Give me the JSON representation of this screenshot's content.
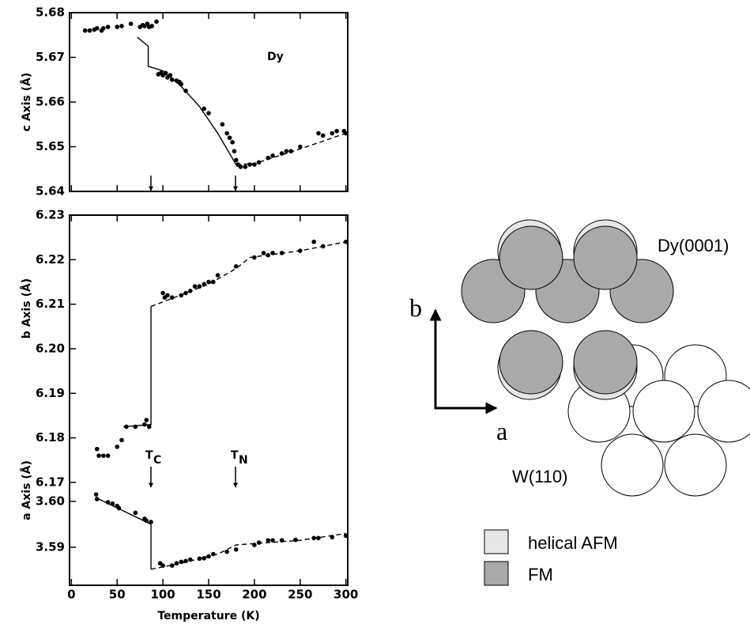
{
  "chart_data": [
    {
      "type": "scatter",
      "ylabel": "c Axis (Å)",
      "annotation": "Dy",
      "xlim": [
        -2,
        302
      ],
      "ylim": [
        5.64,
        5.68
      ],
      "yticks": [
        5.64,
        5.65,
        5.66,
        5.67,
        5.68
      ],
      "series": [
        {
          "color": "#000000",
          "mode": "markers",
          "x": [
            15,
            20,
            25,
            28,
            33,
            35,
            40,
            50,
            55,
            65,
            75,
            78,
            80,
            83,
            85,
            88,
            93,
            95,
            98,
            100,
            103,
            105,
            108,
            110,
            115,
            118,
            120,
            125,
            145,
            150,
            165,
            170,
            173,
            176,
            178,
            180,
            182,
            185,
            190,
            195,
            200,
            205,
            215,
            220,
            230,
            235,
            240,
            250,
            270,
            275,
            285,
            290,
            298,
            300
          ],
          "values": [
            5.676,
            5.676,
            5.6762,
            5.6765,
            5.676,
            5.6765,
            5.6768,
            5.6768,
            5.677,
            5.6775,
            5.6768,
            5.6772,
            5.677,
            5.6775,
            5.6768,
            5.677,
            5.678,
            5.6662,
            5.6665,
            5.666,
            5.6665,
            5.6655,
            5.666,
            5.665,
            5.6648,
            5.6645,
            5.664,
            5.6625,
            5.6585,
            5.6575,
            5.655,
            5.653,
            5.652,
            5.651,
            5.649,
            5.647,
            5.646,
            5.6455,
            5.6455,
            5.646,
            5.646,
            5.6465,
            5.6475,
            5.648,
            5.6485,
            5.649,
            5.649,
            5.65,
            5.653,
            5.6525,
            5.653,
            5.6535,
            5.6535,
            5.653
          ]
        },
        {
          "color": "#000000",
          "mode": "lines",
          "dash": false,
          "x": [
            72,
            84,
            84,
            100,
            120,
            140,
            160,
            180
          ],
          "values": [
            5.6745,
            5.6725,
            5.668,
            5.667,
            5.6635,
            5.659,
            5.653,
            5.646
          ]
        },
        {
          "color": "#000000",
          "mode": "lines",
          "dash": true,
          "x": [
            180,
            200,
            250,
            300
          ],
          "values": [
            5.646,
            5.6462,
            5.6495,
            5.653
          ]
        }
      ]
    },
    {
      "type": "scatter",
      "ylabel": "b Axis (Å)",
      "annotations": [
        [
          "T",
          "C"
        ],
        [
          "T",
          "N"
        ]
      ],
      "xlim": [
        -2,
        302
      ],
      "ylim": [
        6.1675,
        6.23
      ],
      "yticks": [
        6.17,
        6.18,
        6.19,
        {
          "value": 6.2,
          "label": "6.20"
        },
        6.21,
        6.22,
        6.23
      ],
      "series": [
        {
          "color": "#000000",
          "mode": "markers",
          "x": [
            28,
            30,
            35,
            40,
            50,
            55,
            60,
            70,
            80,
            82,
            85,
            100,
            102,
            105,
            110,
            120,
            125,
            130,
            135,
            140,
            145,
            150,
            155,
            160,
            180,
            200,
            210,
            215,
            220,
            230,
            250,
            265,
            275,
            300
          ],
          "values": [
            6.1775,
            6.176,
            6.176,
            6.176,
            6.178,
            6.1795,
            6.1825,
            6.1825,
            6.183,
            6.184,
            6.1825,
            6.2125,
            6.2115,
            6.212,
            6.2115,
            6.212,
            6.2125,
            6.213,
            6.214,
            6.214,
            6.2145,
            6.215,
            6.215,
            6.2165,
            6.2185,
            6.2205,
            6.2215,
            6.221,
            6.2215,
            6.2215,
            6.222,
            6.224,
            6.223,
            6.224
          ]
        },
        {
          "color": "#000000",
          "mode": "lines",
          "dash": false,
          "x": [
            57,
            87,
            87
          ],
          "values": [
            6.1825,
            6.183,
            6.2095
          ]
        },
        {
          "color": "#000000",
          "mode": "lines",
          "dash": true,
          "x": [
            87,
            100,
            150,
            180,
            195,
            250,
            300
          ],
          "values": [
            6.2095,
            6.2105,
            6.2145,
            6.218,
            6.2205,
            6.222,
            6.224
          ]
        }
      ]
    },
    {
      "type": "scatter",
      "ylabel": "a Axis (Å)",
      "xlabel": "Temperature (K)",
      "xlim": [
        -2,
        302
      ],
      "xticks": [
        0,
        50,
        100,
        150,
        200,
        250,
        300
      ],
      "ylim": [
        3.5817,
        3.6017
      ],
      "yticks": [
        3.59,
        {
          "value": 3.6,
          "label": "3.60"
        }
      ],
      "series": [
        {
          "color": "#000000",
          "mode": "markers",
          "x": [
            27,
            28,
            40,
            45,
            50,
            52,
            70,
            80,
            82,
            87,
            97,
            100,
            110,
            115,
            120,
            125,
            130,
            140,
            145,
            150,
            155,
            170,
            180,
            200,
            205,
            215,
            220,
            230,
            245,
            265,
            270,
            285,
            300
          ],
          "values": [
            3.6015,
            3.6005,
            3.5998,
            3.5995,
            3.599,
            3.5985,
            3.5975,
            3.5962,
            3.5958,
            3.5955,
            3.5865,
            3.586,
            3.586,
            3.5865,
            3.5868,
            3.587,
            3.5873,
            3.5875,
            3.5876,
            3.588,
            3.5885,
            3.589,
            3.5895,
            3.5905,
            3.591,
            3.5915,
            3.5915,
            3.5915,
            3.5916,
            3.592,
            3.592,
            3.5922,
            3.5925
          ]
        },
        {
          "color": "#000000",
          "mode": "lines",
          "dash": false,
          "x": [
            30,
            87,
            87
          ],
          "values": [
            3.6005,
            3.595,
            3.5852
          ]
        },
        {
          "color": "#000000",
          "mode": "lines",
          "dash": true,
          "x": [
            87,
            120,
            160,
            180,
            250,
            300
          ],
          "values": [
            3.5852,
            3.5865,
            3.5885,
            3.5905,
            3.5915,
            3.593
          ]
        }
      ]
    }
  ],
  "diagram": {
    "axis_b": "b",
    "axis_a": "a",
    "top_label": "Dy(0001)",
    "bottom_label": "W(110)",
    "legend": [
      "helical AFM",
      "FM"
    ]
  }
}
